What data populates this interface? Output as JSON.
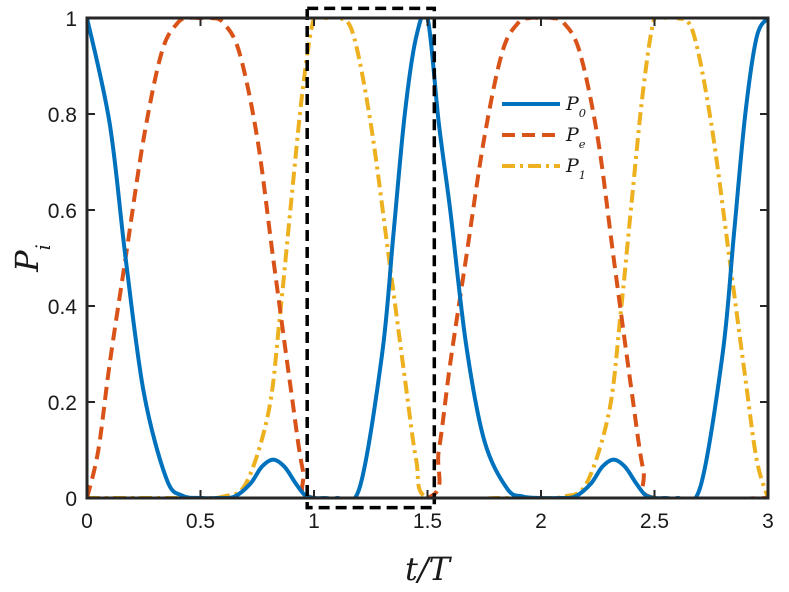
{
  "chart_data": {
    "type": "line",
    "xlabel": "t/T",
    "ylabel": "P_i",
    "xlim": [
      0,
      3
    ],
    "ylim": [
      0,
      1
    ],
    "xticks": [
      "0",
      "0.5",
      "1",
      "1.5",
      "2",
      "2.5",
      "3"
    ],
    "yticks": [
      "0",
      "0.2",
      "0.4",
      "0.6",
      "0.8",
      "1"
    ],
    "grid": false,
    "legend_position": "top-right",
    "series": [
      {
        "name": "P_0",
        "color": "#0072BD",
        "style": "solid",
        "x": [
          0,
          0.1,
          0.17,
          0.25,
          0.35,
          0.42,
          0.5,
          0.58,
          0.65,
          0.72,
          0.77,
          0.82,
          0.87,
          0.92,
          0.96,
          1.0,
          1.05,
          1.1,
          1.2,
          1.3,
          1.35,
          1.4,
          1.45,
          1.5,
          1.55,
          1.6,
          1.67,
          1.75,
          1.85,
          1.92,
          2.0,
          2.08,
          2.15,
          2.22,
          2.27,
          2.32,
          2.37,
          2.42,
          2.46,
          2.5,
          2.55,
          2.6,
          2.7,
          2.8,
          2.85,
          2.9,
          2.95,
          3.0
        ],
        "y": [
          1.0,
          0.78,
          0.5,
          0.22,
          0.04,
          0.005,
          0.0,
          0.0,
          0.003,
          0.03,
          0.065,
          0.08,
          0.065,
          0.03,
          0.006,
          0.0,
          0.0,
          0.0,
          0.02,
          0.3,
          0.55,
          0.8,
          0.96,
          1.0,
          0.78,
          0.6,
          0.32,
          0.12,
          0.02,
          0.003,
          0.0,
          0.0,
          0.003,
          0.03,
          0.065,
          0.08,
          0.065,
          0.03,
          0.006,
          0.0,
          0.0,
          0.0,
          0.02,
          0.3,
          0.55,
          0.8,
          0.96,
          1.0
        ]
      },
      {
        "name": "P_e",
        "color": "#D95319",
        "style": "dashed",
        "x": [
          0,
          0.05,
          0.1,
          0.17,
          0.25,
          0.33,
          0.4,
          0.45,
          0.5,
          0.55,
          0.6,
          0.67,
          0.75,
          0.82,
          0.9,
          0.95,
          1.0,
          1.5,
          1.55,
          1.6,
          1.67,
          1.75,
          1.83,
          1.9,
          1.95,
          2.0,
          2.05,
          2.1,
          2.17,
          2.25,
          2.32,
          2.4,
          2.45,
          2.5,
          3.0
        ],
        "y": [
          0.0,
          0.1,
          0.28,
          0.5,
          0.75,
          0.93,
          0.99,
          1.0,
          1.0,
          1.0,
          0.99,
          0.93,
          0.75,
          0.5,
          0.22,
          0.06,
          0.0,
          0.0,
          0.1,
          0.28,
          0.5,
          0.75,
          0.93,
          0.99,
          1.0,
          1.0,
          1.0,
          0.99,
          0.93,
          0.75,
          0.5,
          0.22,
          0.06,
          0.0,
          0.0
        ]
      },
      {
        "name": "P_1",
        "color": "#EDB120",
        "style": "dashdot",
        "x": [
          0,
          0.3,
          0.4,
          0.5,
          0.6,
          0.7,
          0.8,
          0.85,
          0.9,
          0.95,
          1.0,
          1.05,
          1.1,
          1.17,
          1.25,
          1.33,
          1.4,
          1.45,
          1.5,
          1.8,
          1.9,
          2.0,
          2.1,
          2.2,
          2.3,
          2.35,
          2.4,
          2.45,
          2.5,
          2.55,
          2.6,
          2.67,
          2.75,
          2.83,
          2.9,
          2.95,
          3.0
        ],
        "y": [
          0.0,
          0.0,
          0.0,
          0.0,
          0.003,
          0.03,
          0.18,
          0.38,
          0.62,
          0.85,
          1.0,
          1.0,
          1.0,
          0.97,
          0.78,
          0.5,
          0.25,
          0.08,
          0.0,
          0.0,
          0.0,
          0.0,
          0.003,
          0.03,
          0.18,
          0.38,
          0.62,
          0.85,
          1.0,
          1.0,
          1.0,
          0.97,
          0.78,
          0.5,
          0.25,
          0.08,
          0.0
        ]
      }
    ],
    "annotations": [
      {
        "type": "dashed-box",
        "x": [
          0.97,
          1.53
        ],
        "y": [
          -0.02,
          1.02
        ],
        "color": "#000000"
      }
    ]
  }
}
